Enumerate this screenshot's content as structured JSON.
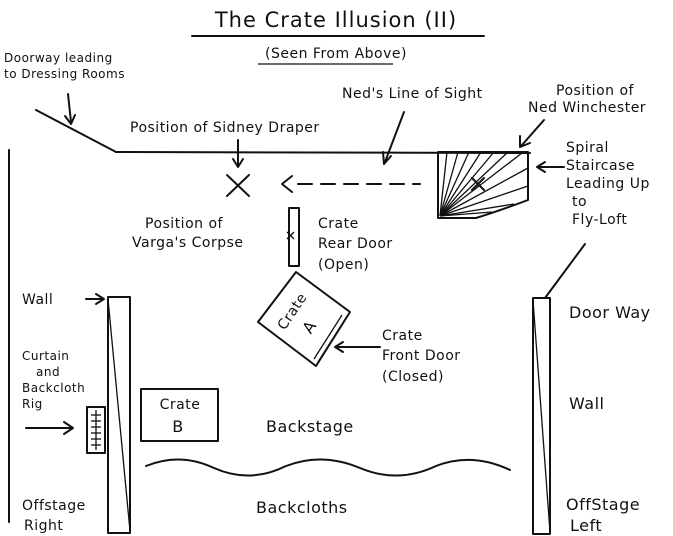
{
  "title": "The Crate Illusion (II)",
  "subtitle": "(Seen From Above)",
  "labels": {
    "doorway_dressing_1": "Doorway leading",
    "doorway_dressing_2": "to Dressing Rooms",
    "neds_line_of_sight": "Ned's Line of Sight",
    "position_ned_1": "Position of",
    "position_ned_2": "Ned Winchester",
    "position_sidney": "Position of Sidney Draper",
    "spiral_1": "Spiral",
    "spiral_2": "Staircase",
    "spiral_3": "Leading Up",
    "spiral_4": "to",
    "spiral_5": "Fly-Loft",
    "corpse_1": "Position of",
    "corpse_2": "Varga's Corpse",
    "crate_rear_1": "Crate",
    "crate_rear_2": "Rear Door",
    "crate_rear_3": "(Open)",
    "wall_left": "Wall",
    "crate_a_1": "Crate",
    "crate_a_2": "A",
    "door_way": "Door Way",
    "curtain_1": "Curtain",
    "curtain_2": "and",
    "curtain_3": "Backcloth",
    "curtain_4": "Rig",
    "crate_front_1": "Crate",
    "crate_front_2": "Front Door",
    "crate_front_3": "(Closed)",
    "wall_right": "Wall",
    "crate_b_1": "Crate",
    "crate_b_2": "B",
    "backstage": "Backstage",
    "offstage_right_1": "Offstage",
    "offstage_right_2": "Right",
    "backcloths": "Backcloths",
    "offstage_left_1": "OffStage",
    "offstage_left_2": "Left"
  }
}
